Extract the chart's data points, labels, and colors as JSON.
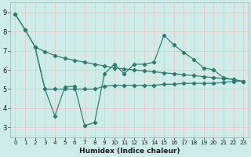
{
  "xlabel": "Humidex (Indice chaleur)",
  "bg_color": "#ceecea",
  "grid_color": "#f0f0f0",
  "line_color": "#2d7b6e",
  "zigzag_x": [
    0,
    1,
    2,
    3,
    4,
    5,
    6,
    7,
    8,
    9,
    10,
    11,
    12,
    13,
    14,
    15,
    16,
    17,
    18,
    19,
    20,
    21,
    22,
    23
  ],
  "zigzag_y": [
    8.9,
    8.1,
    7.2,
    5.0,
    3.6,
    5.1,
    5.15,
    3.1,
    3.25,
    5.8,
    6.3,
    5.8,
    6.3,
    6.3,
    6.4,
    7.8,
    7.3,
    6.9,
    6.55,
    6.1,
    6.0,
    5.6,
    5.5,
    5.4
  ],
  "trend_x": [
    0,
    1,
    2,
    3,
    4,
    5,
    6,
    7,
    8,
    9,
    10,
    11,
    12,
    13,
    14,
    15,
    16,
    17,
    18,
    19,
    20,
    21,
    22,
    23
  ],
  "trend_y": [
    8.9,
    8.1,
    7.2,
    6.95,
    6.75,
    6.6,
    6.5,
    6.4,
    6.3,
    6.2,
    6.1,
    6.05,
    6.0,
    5.95,
    5.9,
    5.85,
    5.8,
    5.75,
    5.7,
    5.65,
    5.6,
    5.55,
    5.5,
    5.4
  ],
  "flat_x": [
    2,
    3,
    4,
    5,
    6,
    7,
    8,
    9,
    10,
    11,
    12,
    13,
    14,
    15,
    16,
    17,
    18,
    19,
    20,
    21,
    22,
    23
  ],
  "flat_y": [
    7.2,
    5.0,
    5.0,
    5.0,
    5.0,
    5.0,
    5.0,
    5.15,
    5.2,
    5.2,
    5.2,
    5.2,
    5.2,
    5.25,
    5.25,
    5.3,
    5.3,
    5.3,
    5.3,
    5.35,
    5.4,
    5.4
  ],
  "ylim": [
    2.5,
    9.5
  ],
  "xlim": [
    -0.5,
    23.5
  ],
  "yticks": [
    3,
    4,
    5,
    6,
    7,
    8,
    9
  ],
  "xticks": [
    0,
    1,
    2,
    3,
    4,
    5,
    6,
    7,
    8,
    9,
    10,
    11,
    12,
    13,
    14,
    15,
    16,
    17,
    18,
    19,
    20,
    21,
    22,
    23
  ],
  "marker_size": 2.2,
  "linewidth": 0.85
}
